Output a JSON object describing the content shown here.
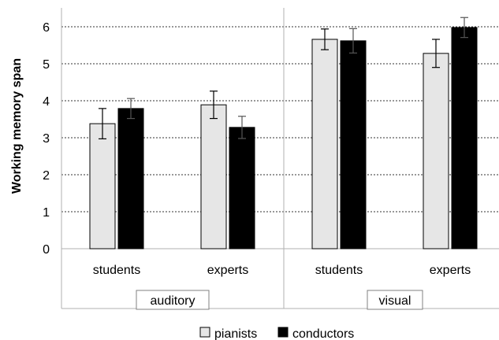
{
  "chart_data": {
    "type": "bar",
    "title": "",
    "ylabel": "Working memory span",
    "xlabel": "",
    "ylim": [
      0,
      6
    ],
    "yticks": [
      "0",
      "1",
      "2",
      "3",
      "4",
      "5",
      "6"
    ],
    "grid": "horizontal dotted",
    "legend_position": "bottom-center",
    "groups": [
      {
        "label": "auditory",
        "categories": [
          "students",
          "experts"
        ]
      },
      {
        "label": "visual",
        "categories": [
          "students",
          "experts"
        ]
      }
    ],
    "categories": [
      "students",
      "experts",
      "students",
      "experts"
    ],
    "series": [
      {
        "name": "pianists",
        "color": "#e6e6e6",
        "values": [
          3.38,
          3.89,
          5.66,
          5.28
        ],
        "error": [
          0.41,
          0.37,
          0.28,
          0.38
        ]
      },
      {
        "name": "conductors",
        "color": "#000000",
        "values": [
          3.79,
          3.28,
          5.62,
          5.98
        ],
        "error": [
          0.27,
          0.3,
          0.33,
          0.27
        ]
      }
    ]
  }
}
